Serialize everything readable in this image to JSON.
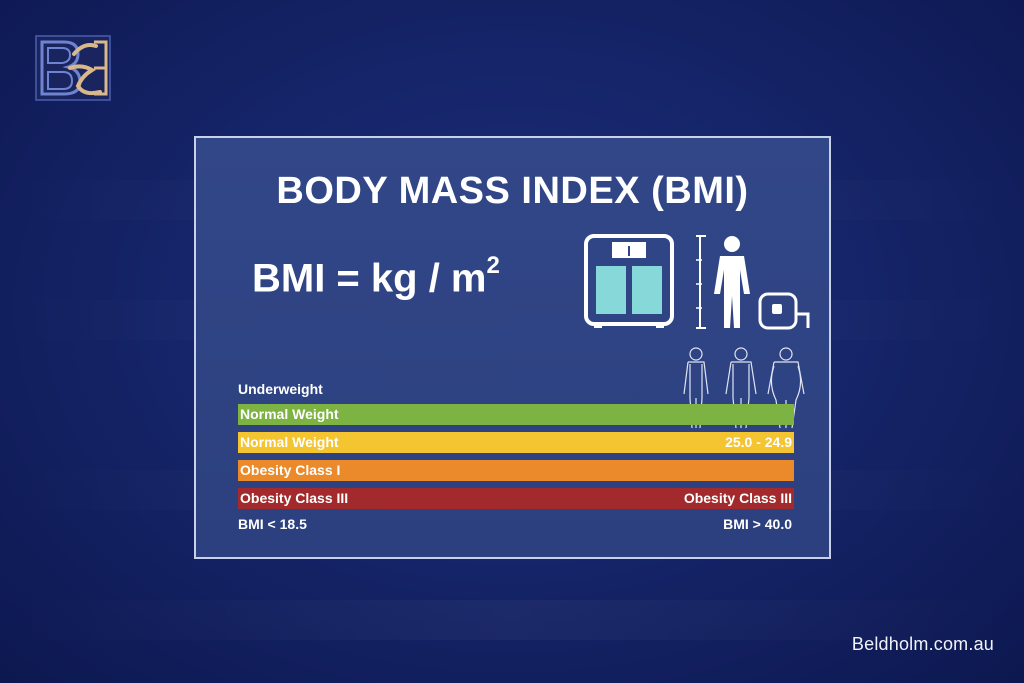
{
  "brand": {
    "url": "Beldholm.com.au"
  },
  "card": {
    "title": "BODY MASS INDEX (BMI)",
    "formula_base": "BMI = kg / m",
    "formula_exponent": "2"
  },
  "scale": {
    "underweight_label": "Underweight",
    "bars": [
      {
        "label": "Normal Weight",
        "right_label": "",
        "color": "#7cb342"
      },
      {
        "label": "Normal Weight",
        "right_label": "25.0 - 24.9",
        "color": "#f5c431"
      },
      {
        "label": "Obesity Class I",
        "right_label": "",
        "color": "#ea8a2a"
      },
      {
        "label": "Obesity Class III",
        "right_label": "Obesity Class III",
        "color": "#a32a2c"
      }
    ],
    "low_end": "BMI < 18.5",
    "high_end": "BMI > 40.0"
  },
  "icons": [
    "bathroom-scale-icon",
    "height-measure-icon",
    "human-figure-icon",
    "tape-measure-icon",
    "body-types-icon"
  ],
  "colors": {
    "background": "#16256a",
    "card": "#2f4485",
    "logo_gold": "#d9b98a"
  }
}
